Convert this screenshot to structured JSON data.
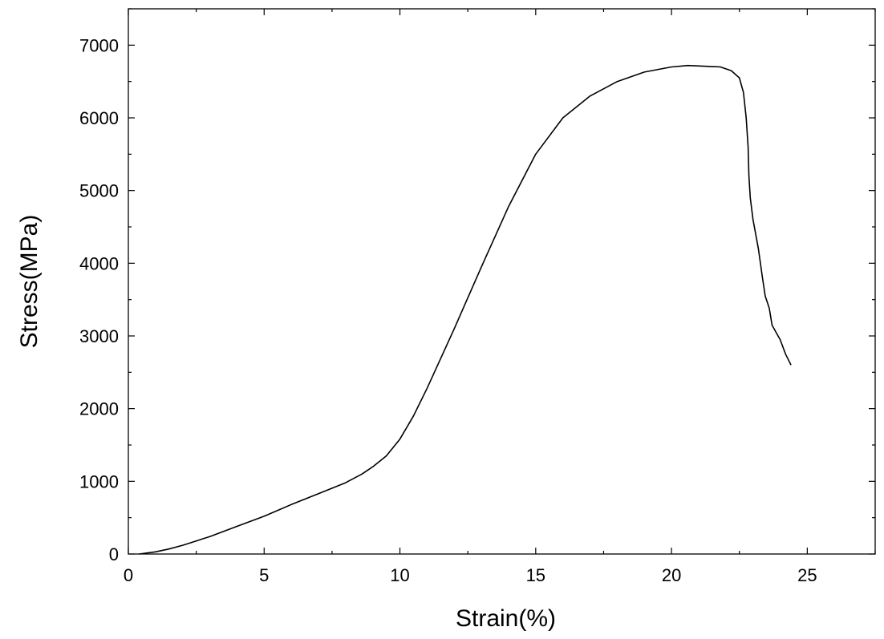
{
  "chart_data": {
    "type": "line",
    "title": "",
    "xlabel": "Strain(%)",
    "ylabel": "Stress(MPa)",
    "xlim": [
      0,
      27.5
    ],
    "ylim": [
      0,
      7500
    ],
    "x_ticks": [
      0,
      5,
      10,
      15,
      20,
      25
    ],
    "y_ticks": [
      0,
      1000,
      2000,
      3000,
      4000,
      5000,
      6000,
      7000
    ],
    "x_minor_step": 2.5,
    "y_minor_step": 500,
    "grid": false,
    "legend": "none",
    "colors": {
      "line": "#000000",
      "axes": "#000000",
      "background": "#ffffff"
    },
    "series": [
      {
        "x": [
          0.4,
          1.0,
          1.5,
          2.0,
          2.5,
          3.0,
          4.0,
          5.0,
          6.0,
          7.0,
          8.0,
          8.6,
          9.0,
          9.5,
          10.0,
          10.5,
          11.0,
          12.0,
          13.0,
          14.0,
          15.0,
          16.0,
          17.0,
          18.0,
          19.0,
          20.0,
          20.6,
          21.2,
          21.8,
          22.2,
          22.5,
          22.65,
          22.75,
          22.82,
          22.85,
          22.9,
          23.0,
          23.2,
          23.35,
          23.45,
          23.6,
          23.7,
          23.85,
          24.0,
          24.2,
          24.4
        ],
        "y": [
          0,
          30,
          70,
          120,
          180,
          240,
          380,
          520,
          680,
          830,
          980,
          1100,
          1200,
          1350,
          1580,
          1900,
          2280,
          3100,
          3950,
          4780,
          5500,
          6000,
          6300,
          6500,
          6630,
          6700,
          6720,
          6710,
          6700,
          6650,
          6550,
          6350,
          6000,
          5600,
          5200,
          4900,
          4600,
          4200,
          3800,
          3550,
          3380,
          3150,
          3050,
          2950,
          2750,
          2600
        ]
      }
    ]
  }
}
